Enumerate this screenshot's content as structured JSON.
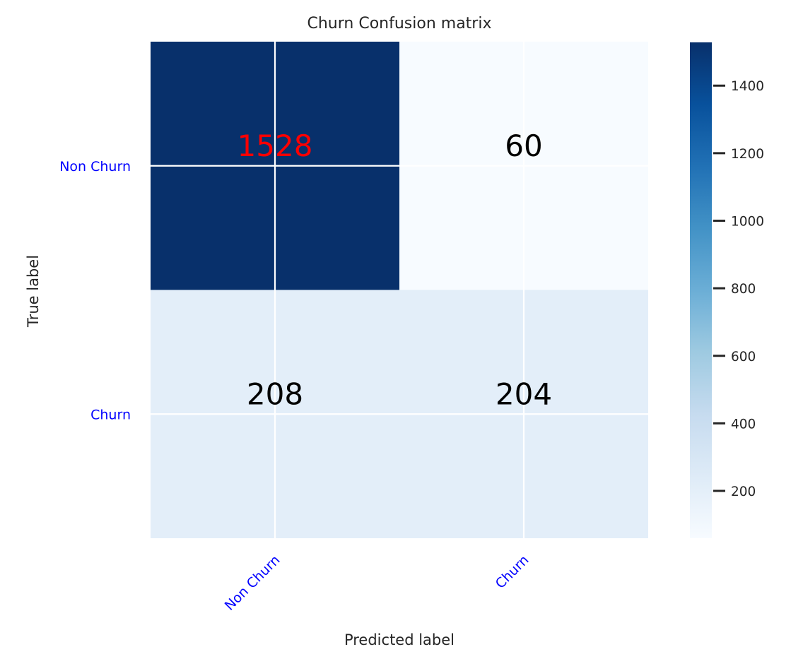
{
  "chart_data": {
    "type": "heatmap",
    "title": "Churn Confusion matrix",
    "xlabel": "Predicted label",
    "ylabel": "True label",
    "x_categories": [
      "Non Churn",
      "Churn"
    ],
    "y_categories": [
      "Non Churn",
      "Churn"
    ],
    "values": [
      [
        1528,
        60
      ],
      [
        208,
        204
      ]
    ],
    "colormap": "Blues",
    "colorbar": {
      "min": 60,
      "max": 1528,
      "ticks": [
        200,
        400,
        600,
        800,
        1000,
        1200,
        1400
      ]
    },
    "grid": true,
    "colors": {
      "tick_labels": "#0000ff",
      "highlight_value": "#ff0000",
      "value_text": "#000000",
      "axis_text": "#262626",
      "grid": "#ffffff"
    }
  }
}
